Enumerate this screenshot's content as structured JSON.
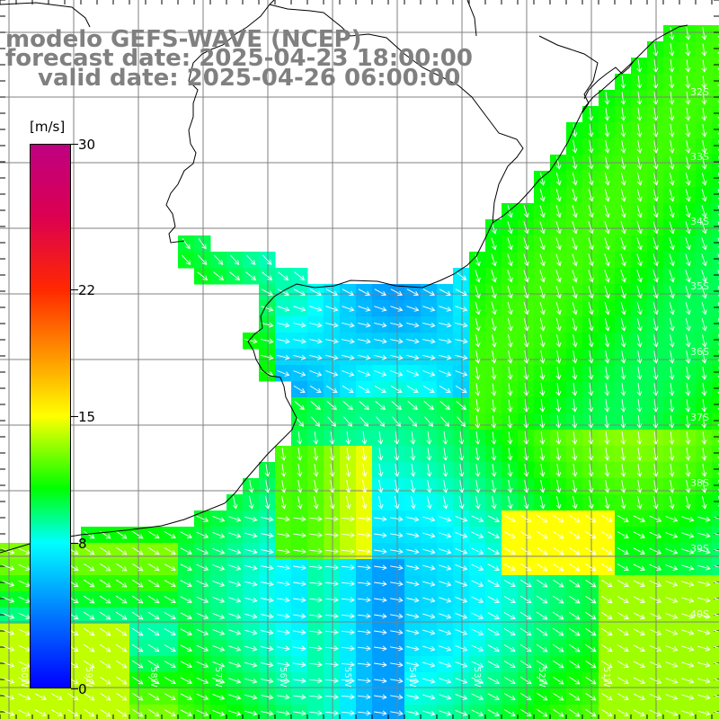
{
  "title": {
    "model": "modelo GEFS-WAVE (NCEP)",
    "forecast": "forecast date: 2025-04-23 18:00:00",
    "valid": "valid date: 2025-04-26 06:00:00"
  },
  "colorbar": {
    "unit": "[m/s]",
    "ticks": [
      {
        "value": 30,
        "label": "30"
      },
      {
        "value": 22,
        "label": "22"
      },
      {
        "value": 15,
        "label": "15"
      },
      {
        "value": 8,
        "label": "8"
      },
      {
        "value": 0,
        "label": "0"
      }
    ],
    "min": 0,
    "max": 30
  },
  "lat_labels": [
    "32S",
    "33S",
    "34S",
    "35S",
    "36S",
    "37S",
    "38S",
    "39S",
    "40S"
  ],
  "lon_labels": [
    "60W",
    "59W",
    "58W",
    "57W",
    "56W",
    "55W",
    "54W",
    "53W",
    "52W",
    "51W"
  ],
  "colors": {
    "ocean_low": "#1e7fff",
    "ocean_mid": "#00ff00",
    "ocean_high": "#ffff00",
    "land": "#ffffff",
    "grid": "#808080",
    "arrows": "#ffffff",
    "coast": "#000000"
  }
}
